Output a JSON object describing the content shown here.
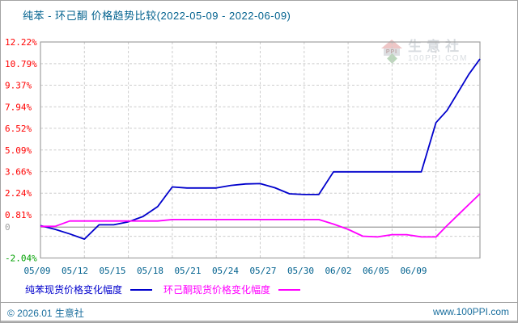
{
  "page": {
    "title": "纯苯 - 环己酮 价格趋势比较(2022-05-09 - 2022-06-09)",
    "footer_left": "© 2026.01 生意社",
    "footer_right": "www.100PPI.com",
    "watermark": {
      "brand": "生意社",
      "site": "100PPI.COM",
      "logo_text": "PPI"
    }
  },
  "legend": [
    {
      "label": "纯苯现货价格变化幅度",
      "color": "#0000cc"
    },
    {
      "label": "环己酮现货价格变化幅度",
      "color": "#ff00ff"
    }
  ],
  "chart_data": {
    "type": "line",
    "title": "纯苯 - 环己酮 价格趋势比较(2022-05-09 - 2022-06-09)",
    "xlabel": "",
    "ylabel": "",
    "ylim": [
      -2.04,
      12.22
    ],
    "grid": true,
    "legend_position": "bottom",
    "x_tick_labels": [
      "05/09",
      "05/12",
      "05/15",
      "05/18",
      "05/21",
      "05/24",
      "05/27",
      "05/30",
      "06/02",
      "06/05",
      "06/09"
    ],
    "x_tick_label_color": "#01618e",
    "y_ticks": [
      {
        "label": "12.22%",
        "value": 12.22,
        "color": "#ff0000"
      },
      {
        "label": "10.79%",
        "value": 10.79,
        "color": "#ff0000"
      },
      {
        "label": "9.37%",
        "value": 9.37,
        "color": "#ff0000"
      },
      {
        "label": "7.94%",
        "value": 7.94,
        "color": "#ff0000"
      },
      {
        "label": "6.52%",
        "value": 6.52,
        "color": "#ff0000"
      },
      {
        "label": "5.09%",
        "value": 5.09,
        "color": "#ff0000"
      },
      {
        "label": "3.66%",
        "value": 3.66,
        "color": "#ff0000"
      },
      {
        "label": "2.24%",
        "value": 2.24,
        "color": "#ff0000"
      },
      {
        "label": "0.81%",
        "value": 0.81,
        "color": "#ff0000"
      },
      {
        "label": "0",
        "value": 0,
        "color": "#a0a0a0"
      },
      {
        "label": "",
        "value": -0.61,
        "color": ""
      },
      {
        "label": "-2.04%",
        "value": -2.04,
        "color": "#00a000"
      }
    ],
    "dates": [
      "05/09",
      "05/10",
      "05/11",
      "05/12",
      "05/13",
      "05/14",
      "05/15",
      "05/16",
      "05/17",
      "05/18",
      "05/19",
      "05/20",
      "05/21",
      "05/22",
      "05/23",
      "05/24",
      "05/25",
      "05/26",
      "05/27",
      "05/28",
      "05/29",
      "05/30",
      "05/31",
      "06/01",
      "06/02",
      "06/03",
      "06/04",
      "06/05",
      "06/06",
      "06/07",
      "06/08",
      "06/09"
    ],
    "series": [
      {
        "name": "纯苯现货价格变化幅度",
        "color": "#0000cc",
        "values": [
          0.1,
          -0.15,
          -0.45,
          -0.79,
          0.15,
          0.15,
          0.35,
          0.7,
          1.35,
          2.65,
          2.58,
          2.58,
          2.58,
          2.75,
          2.85,
          2.87,
          2.6,
          2.2,
          2.15,
          2.15,
          3.65,
          3.65,
          3.65,
          3.65,
          3.65,
          3.65,
          3.65,
          6.9,
          7.7,
          8.9,
          10.1,
          11.1
        ]
      },
      {
        "name": "环己酮现货价格变化幅度",
        "color": "#ff00ff",
        "values": [
          0.05,
          0.05,
          0.4,
          0.4,
          0.4,
          0.4,
          0.4,
          0.4,
          0.4,
          0.5,
          0.5,
          0.5,
          0.5,
          0.5,
          0.5,
          0.5,
          0.5,
          0.5,
          0.5,
          0.5,
          0.2,
          -0.15,
          -0.6,
          -0.65,
          -0.5,
          -0.5,
          -0.65,
          -0.65,
          0.1,
          0.8,
          1.5,
          2.2
        ]
      }
    ]
  }
}
